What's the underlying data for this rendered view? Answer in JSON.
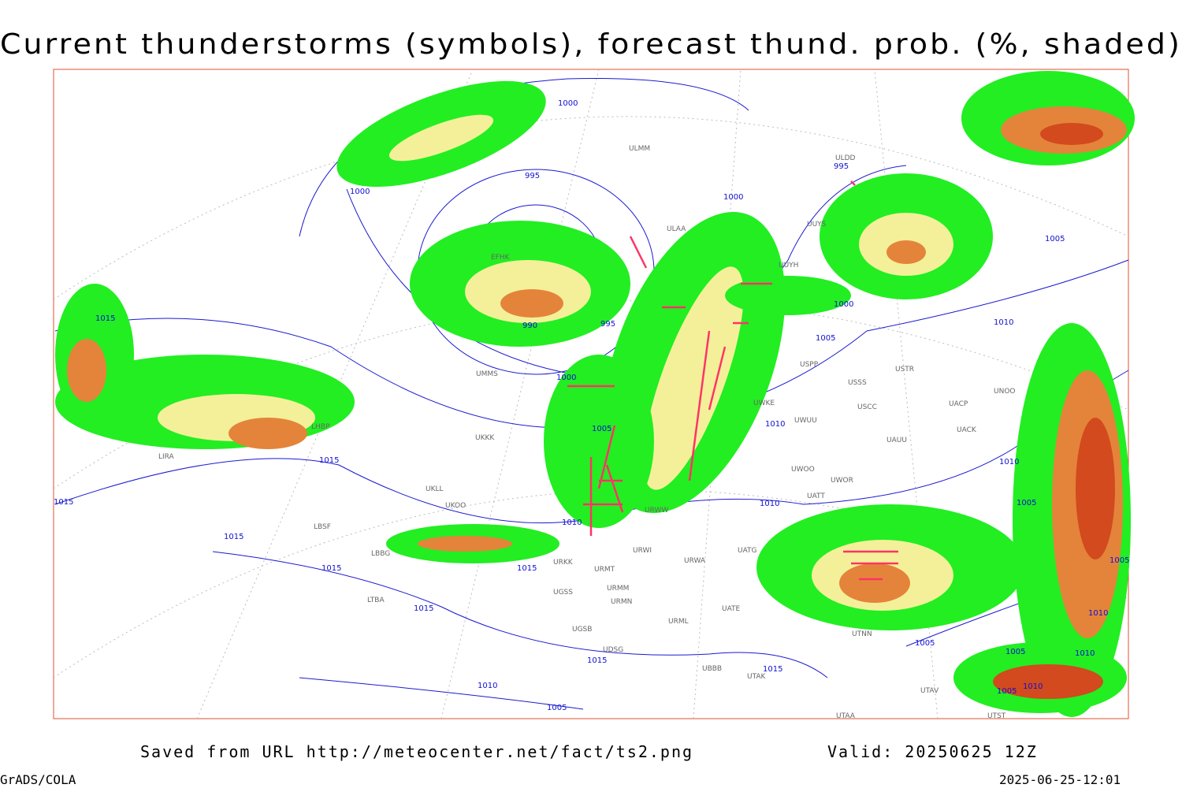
{
  "title": "Current thunderstorms (symbols), forecast thund. prob. (%, shaded)",
  "footer": {
    "source": "Saved from URL http://meteocenter.net/fact/ts2.png",
    "valid": "Valid: 20250625 12Z",
    "software": "GrADS/COLA",
    "timestamp": "2025-06-25-12:01"
  },
  "isobar_labels": [
    1000,
    995,
    1000,
    1000,
    995,
    1005,
    990,
    995,
    1000,
    1010,
    1005,
    1015,
    1000,
    1005,
    1010,
    1015,
    1015,
    1010,
    1005,
    1010,
    1010,
    1015,
    1015,
    1015,
    1015,
    1015,
    1010,
    1005,
    1015,
    1005,
    1005,
    1005,
    1010,
    1010,
    1010,
    1005
  ],
  "stations": [
    "ULMM",
    "ULDD",
    "ULAA",
    "UUYS",
    "UUYH",
    "EFHK",
    "UMMS",
    "UKKK",
    "LIRA",
    "LHBP",
    "LBSF",
    "LBBG",
    "URKK",
    "URMT",
    "URWA",
    "URWI",
    "URWW",
    "UATT",
    "UWOO",
    "UWOR",
    "USSS",
    "USTR",
    "USCC",
    "UACP",
    "UNOO",
    "UACK",
    "UAUU",
    "UWKE",
    "UWUU",
    "USPP",
    "UTNN",
    "UTAK",
    "UBBB",
    "UGSB",
    "UDSG",
    "URML",
    "UATE",
    "UATG",
    "URMM",
    "URMN",
    "UGSS",
    "LTBA",
    "UTAV",
    "UTAA",
    "UTST",
    "UKOO",
    "UKLL"
  ]
}
